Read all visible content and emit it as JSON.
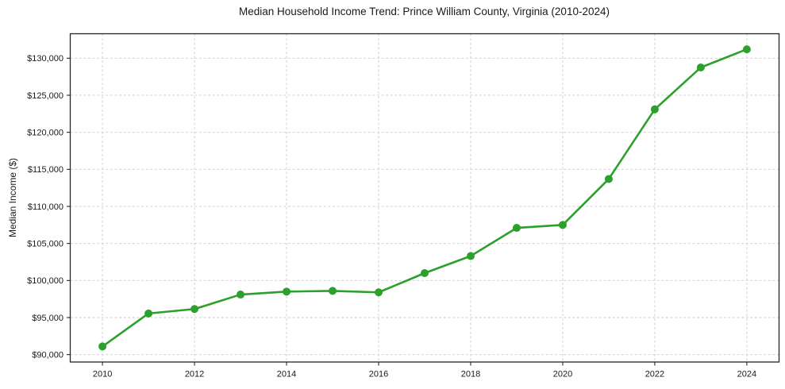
{
  "window": {
    "background": "#ffffff"
  },
  "chart_data": {
    "type": "line",
    "title": "Median Household Income Trend: Prince William County, Virginia (2010-2024)",
    "xlabel": "",
    "ylabel": "Median Income ($)",
    "x": [
      2010,
      2011,
      2012,
      2013,
      2014,
      2015,
      2016,
      2017,
      2018,
      2019,
      2020,
      2021,
      2022,
      2023,
      2024
    ],
    "series": [
      {
        "name": "Median Household Income",
        "values": [
          91100,
          95550,
          96150,
          98100,
          98500,
          98600,
          98400,
          101000,
          103300,
          107100,
          107500,
          113700,
          123100,
          128750,
          131200
        ],
        "color": "#2ca02c",
        "marker": "circle"
      }
    ],
    "x_ticks": [
      2010,
      2012,
      2014,
      2016,
      2018,
      2020,
      2022,
      2024
    ],
    "x_tick_labels": [
      "2010",
      "2012",
      "2014",
      "2016",
      "2018",
      "2020",
      "2022",
      "2024"
    ],
    "y_ticks": [
      90000,
      95000,
      100000,
      105000,
      110000,
      115000,
      120000,
      125000,
      130000
    ],
    "y_tick_labels": [
      "$90,000",
      "$95,000",
      "$100,000",
      "$105,000",
      "$110,000",
      "$115,000",
      "$120,000",
      "$125,000",
      "$130,000"
    ],
    "xlim": [
      2009.3,
      2024.7
    ],
    "ylim": [
      89000,
      133300
    ],
    "grid": true,
    "grid_style": "dashed",
    "legend": "none"
  },
  "colors": {
    "line": "#2ca02c",
    "grid": "#cccccc",
    "spine": "#262626",
    "text": "#1a1a1a",
    "background": "#ffffff"
  }
}
